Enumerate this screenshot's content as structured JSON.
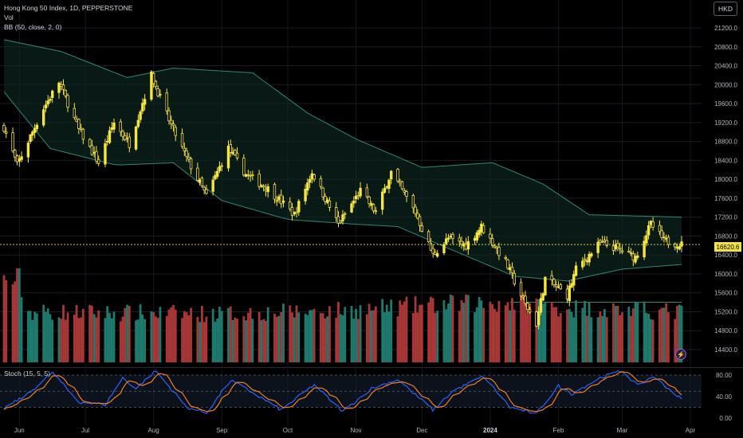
{
  "legend": {
    "symbol": "Hong Kong 50 Index, 1D, PEPPERSTONE",
    "volume": "Vol",
    "bollinger": "BB (50, close, 2, 0)",
    "stoch": "Stoch (15, 5, 5)"
  },
  "currency": "HKD",
  "last_price": "16620.6",
  "colors": {
    "up": "#f5e641",
    "up_volume": "#1f7a6e",
    "down_volume": "#a83737",
    "band": "#2e8b6f",
    "stoch_k": "#2962ff",
    "stoch_d": "#f57c1f",
    "background": "#000000"
  },
  "chart_data": [
    {
      "type": "candlestick",
      "title": "Hong Kong 50 Index, 1D, PEPPERSTONE",
      "y_ticks": [
        "21200.0",
        "20800.0",
        "20400.0",
        "20000.0",
        "19600.0",
        "19200.0",
        "18800.0",
        "18400.0",
        "18000.0",
        "17600.0",
        "17200.0",
        "16800.0",
        "16400.0",
        "16000.0",
        "15600.0",
        "15200.0",
        "14800.0",
        "14400.0"
      ],
      "x_ticks": [
        "Jun",
        "Jul",
        "Aug",
        "Sep",
        "Oct",
        "Nov",
        "Dec",
        "2024",
        "Feb",
        "Mar",
        "Apr"
      ],
      "ylim": [
        14200,
        21400
      ],
      "grid": true,
      "close_anchors": [
        {
          "date": "2023-05-25",
          "value": 19100
        },
        {
          "date": "2023-05-31",
          "value": 18300
        },
        {
          "date": "2023-06-12",
          "value": 19500
        },
        {
          "date": "2023-06-19",
          "value": 20050
        },
        {
          "date": "2023-06-28",
          "value": 19050
        },
        {
          "date": "2023-07-07",
          "value": 18350
        },
        {
          "date": "2023-07-14",
          "value": 19200
        },
        {
          "date": "2023-07-21",
          "value": 18750
        },
        {
          "date": "2023-07-31",
          "value": 20200
        },
        {
          "date": "2023-08-08",
          "value": 19250
        },
        {
          "date": "2023-08-16",
          "value": 18450
        },
        {
          "date": "2023-08-25",
          "value": 17650
        },
        {
          "date": "2023-09-04",
          "value": 18650
        },
        {
          "date": "2023-09-12",
          "value": 18100
        },
        {
          "date": "2023-09-22",
          "value": 17800
        },
        {
          "date": "2023-10-04",
          "value": 17250
        },
        {
          "date": "2023-10-12",
          "value": 18150
        },
        {
          "date": "2023-10-24",
          "value": 17050
        },
        {
          "date": "2023-11-03",
          "value": 17750
        },
        {
          "date": "2023-11-10",
          "value": 17300
        },
        {
          "date": "2023-11-17",
          "value": 18150
        },
        {
          "date": "2023-11-28",
          "value": 17300
        },
        {
          "date": "2023-12-06",
          "value": 16400
        },
        {
          "date": "2023-12-13",
          "value": 16750
        },
        {
          "date": "2023-12-21",
          "value": 16600
        },
        {
          "date": "2023-12-28",
          "value": 17000
        },
        {
          "date": "2024-01-08",
          "value": 16250
        },
        {
          "date": "2024-01-17",
          "value": 15350
        },
        {
          "date": "2024-01-22",
          "value": 14950
        },
        {
          "date": "2024-01-26",
          "value": 15900
        },
        {
          "date": "2024-02-05",
          "value": 15550
        },
        {
          "date": "2024-02-09",
          "value": 16100
        },
        {
          "date": "2024-02-20",
          "value": 16650
        },
        {
          "date": "2024-02-27",
          "value": 16550
        },
        {
          "date": "2024-03-07",
          "value": 16350
        },
        {
          "date": "2024-03-14",
          "value": 17050
        },
        {
          "date": "2024-03-20",
          "value": 16700
        },
        {
          "date": "2024-03-28",
          "value": 16620.6
        }
      ],
      "bollinger_upper": [
        {
          "date": "2023-05-25",
          "value": 20950
        },
        {
          "date": "2023-06-20",
          "value": 20700
        },
        {
          "date": "2023-07-20",
          "value": 20150
        },
        {
          "date": "2023-08-10",
          "value": 20350
        },
        {
          "date": "2023-09-15",
          "value": 20250
        },
        {
          "date": "2023-10-10",
          "value": 19400
        },
        {
          "date": "2023-11-01",
          "value": 18850
        },
        {
          "date": "2023-12-01",
          "value": 18250
        },
        {
          "date": "2024-01-02",
          "value": 18350
        },
        {
          "date": "2024-01-25",
          "value": 17900
        },
        {
          "date": "2024-02-15",
          "value": 17250
        },
        {
          "date": "2024-03-28",
          "value": 17200
        }
      ],
      "bollinger_lower": [
        {
          "date": "2023-05-25",
          "value": 19850
        },
        {
          "date": "2023-06-15",
          "value": 18650
        },
        {
          "date": "2023-07-15",
          "value": 18300
        },
        {
          "date": "2023-08-10",
          "value": 18350
        },
        {
          "date": "2023-09-01",
          "value": 17550
        },
        {
          "date": "2023-10-01",
          "value": 17150
        },
        {
          "date": "2023-11-01",
          "value": 17050
        },
        {
          "date": "2023-11-20",
          "value": 17000
        },
        {
          "date": "2023-12-15",
          "value": 16500
        },
        {
          "date": "2024-01-12",
          "value": 15950
        },
        {
          "date": "2024-02-05",
          "value": 15850
        },
        {
          "date": "2024-03-01",
          "value": 16100
        },
        {
          "date": "2024-03-28",
          "value": 16200
        }
      ]
    },
    {
      "type": "bar",
      "name": "Vol",
      "volume_anchors": [
        {
          "date": "2023-05-25",
          "value": 0.88
        },
        {
          "date": "2023-06-01",
          "value": 0.9
        },
        {
          "date": "2023-06-05",
          "value": 0.55
        },
        {
          "date": "2023-09-01",
          "value": 0.53
        },
        {
          "date": "2023-11-01",
          "value": 0.57
        },
        {
          "date": "2023-12-01",
          "value": 0.62
        },
        {
          "date": "2024-01-15",
          "value": 0.66
        },
        {
          "date": "2024-02-01",
          "value": 0.6
        },
        {
          "date": "2024-03-28",
          "value": 0.55
        }
      ],
      "ma_level": 0.64
    },
    {
      "type": "line",
      "title": "Stoch (15, 5, 5)",
      "y_ticks": [
        "80.00",
        "40.00",
        "0.00"
      ],
      "levels": [
        80,
        50,
        20
      ],
      "ylim": [
        -6,
        90
      ],
      "k_anchors": [
        {
          "date": "2023-05-25",
          "value": 18
        },
        {
          "date": "2023-06-05",
          "value": 45
        },
        {
          "date": "2023-06-16",
          "value": 85
        },
        {
          "date": "2023-06-28",
          "value": 30
        },
        {
          "date": "2023-07-10",
          "value": 25
        },
        {
          "date": "2023-07-18",
          "value": 75
        },
        {
          "date": "2023-07-24",
          "value": 55
        },
        {
          "date": "2023-08-02",
          "value": 88
        },
        {
          "date": "2023-08-16",
          "value": 20
        },
        {
          "date": "2023-08-25",
          "value": 10
        },
        {
          "date": "2023-09-05",
          "value": 70
        },
        {
          "date": "2023-09-14",
          "value": 50
        },
        {
          "date": "2023-09-28",
          "value": 15
        },
        {
          "date": "2023-10-13",
          "value": 62
        },
        {
          "date": "2023-10-26",
          "value": 12
        },
        {
          "date": "2023-11-08",
          "value": 55
        },
        {
          "date": "2023-11-20",
          "value": 72
        },
        {
          "date": "2023-12-06",
          "value": 15
        },
        {
          "date": "2023-12-15",
          "value": 50
        },
        {
          "date": "2023-12-29",
          "value": 78
        },
        {
          "date": "2024-01-10",
          "value": 20
        },
        {
          "date": "2024-01-22",
          "value": 8
        },
        {
          "date": "2024-02-01",
          "value": 60
        },
        {
          "date": "2024-02-07",
          "value": 45
        },
        {
          "date": "2024-02-20",
          "value": 75
        },
        {
          "date": "2024-03-01",
          "value": 88
        },
        {
          "date": "2024-03-08",
          "value": 60
        },
        {
          "date": "2024-03-15",
          "value": 78
        },
        {
          "date": "2024-03-28",
          "value": 35
        }
      ]
    }
  ]
}
